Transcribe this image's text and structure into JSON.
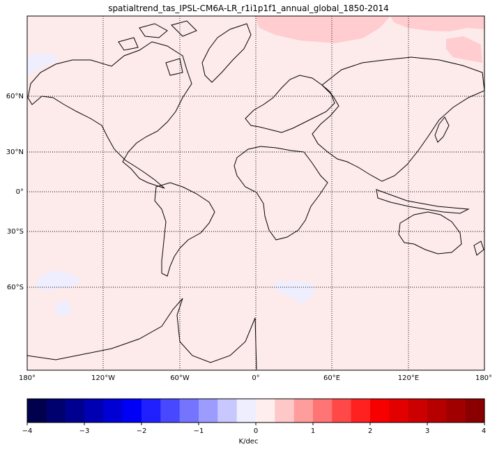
{
  "title": "spatialtrend_tas_IPSL-CM6A-LR_r1i1p1f1_annual_global_1850-2014",
  "map": {
    "projection": "Mercator",
    "background_color": "#fdeaea",
    "grid": "dotted",
    "lat_labels": [
      "60°N",
      "30°N",
      "0°",
      "30°S",
      "60°S"
    ],
    "lon_labels": [
      "180°",
      "120°W",
      "60°W",
      "0°",
      "60°E",
      "120°E",
      "180°"
    ],
    "anomaly_regions": [
      {
        "location": "Arctic north of Eurasia",
        "color": "#ffcccf"
      },
      {
        "location": "Arctic north of Russia/Siberia",
        "color": "#ffcccf"
      },
      {
        "location": "Beaufort Sea / NW Canada",
        "color": "#ffcccf"
      },
      {
        "location": "Southern Ocean south of Pacific",
        "color": "#eeeeff"
      },
      {
        "location": "Southern Ocean south of Africa",
        "color": "#eeeeff"
      }
    ]
  },
  "colorbar": {
    "label": "K/dec",
    "range": [
      -4,
      4
    ],
    "tick_labels": [
      "−4",
      "−3",
      "−2",
      "−1",
      "0",
      "1",
      "2",
      "3",
      "4"
    ],
    "colors": [
      "#00004c",
      "#00006e",
      "#000090",
      "#0000b2",
      "#0000d4",
      "#0000f6",
      "#2020ff",
      "#4848ff",
      "#7474ff",
      "#9c9cff",
      "#c8c8ff",
      "#eeeeff",
      "#ffeeee",
      "#ffc8c8",
      "#ff9c9c",
      "#ff7474",
      "#ff4848",
      "#ff2020",
      "#f60000",
      "#e20000",
      "#cc0000",
      "#b60000",
      "#a00000",
      "#8a0000"
    ]
  }
}
